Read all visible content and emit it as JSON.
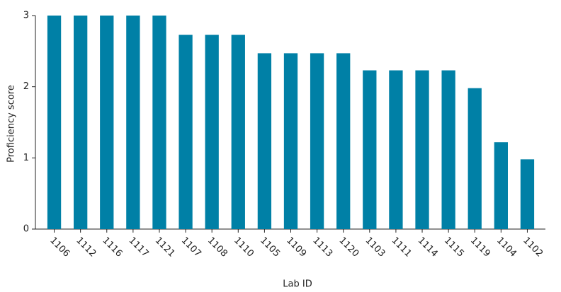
{
  "chart_data": {
    "type": "bar",
    "x_label": "Lab ID",
    "y_label": "Proficiency score",
    "categories": [
      "1106",
      "1112",
      "1116",
      "1117",
      "1121",
      "1107",
      "1108",
      "1110",
      "1105",
      "1109",
      "1113",
      "1120",
      "1103",
      "1111",
      "1114",
      "1115",
      "1119",
      "1104",
      "1102"
    ],
    "values": [
      3,
      3,
      3,
      3,
      3,
      2.73,
      2.73,
      2.73,
      2.47,
      2.47,
      2.47,
      2.47,
      2.23,
      2.23,
      2.23,
      2.23,
      1.98,
      1.22,
      0.98
    ],
    "color": "#0080a6",
    "ylim": [
      0,
      3
    ],
    "yticks": [
      0,
      1,
      2,
      3
    ],
    "grid": false
  }
}
